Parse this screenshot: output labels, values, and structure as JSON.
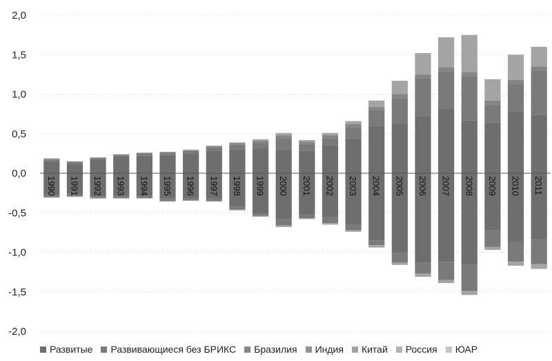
{
  "chart_data": {
    "type": "bar",
    "stacked": true,
    "categories": [
      "1990",
      "1991",
      "1992",
      "1993",
      "1994",
      "1995",
      "1996",
      "1997",
      "1998",
      "1999",
      "2000",
      "2001",
      "2002",
      "2003",
      "2004",
      "2005",
      "2006",
      "2007",
      "2008",
      "2009",
      "2010",
      "2011"
    ],
    "ylim": [
      -2.0,
      2.0
    ],
    "yticks": [
      "2,0",
      "1,5",
      "1,0",
      "0,5",
      "0,0",
      "-0,5",
      "-1,0",
      "-1,5",
      "-2,0"
    ],
    "ytick_values": [
      2.0,
      1.5,
      1.0,
      0.5,
      0.0,
      -0.5,
      -1.0,
      -1.5,
      -2.0
    ],
    "grid": "horizontal-dotted",
    "legend_position": "bottom",
    "series": [
      {
        "name": "Развитые",
        "color": "#6e6e6e",
        "values": [
          0.15,
          0.12,
          0.17,
          0.21,
          0.22,
          0.23,
          0.25,
          0.28,
          0.3,
          0.31,
          0.3,
          0.28,
          0.35,
          0.44,
          0.6,
          0.62,
          0.72,
          0.82,
          0.67,
          0.64,
          0.78,
          0.74
        ]
      },
      {
        "name": "Развивающиеся без БРИКС",
        "color": "#7a7a7a",
        "values": [
          0.02,
          0.02,
          0.02,
          0.02,
          0.03,
          0.03,
          0.03,
          0.05,
          0.06,
          0.07,
          0.14,
          0.09,
          0.09,
          0.14,
          0.2,
          0.33,
          0.48,
          0.47,
          0.56,
          0.23,
          0.35,
          0.56
        ]
      },
      {
        "name": "Бразилия",
        "color": "#858585",
        "values": [
          0.01,
          0.01,
          0.01,
          0.01,
          0.01,
          0.01,
          0.01,
          0.01,
          0.02,
          0.03,
          0.04,
          0.03,
          0.04,
          0.04,
          0.04,
          0.05,
          0.05,
          0.05,
          0.05,
          0.05,
          0.05,
          0.05
        ]
      },
      {
        "name": "Индия",
        "color": "#939393",
        "values": [
          0,
          0,
          0,
          0,
          0,
          0,
          0,
          0,
          0,
          0,
          0,
          0,
          0,
          0,
          0,
          0,
          0,
          0,
          0,
          0,
          0,
          0
        ]
      },
      {
        "name": "Китай",
        "color": "#a4a4a4",
        "values": [
          0.01,
          0.0,
          0.0,
          0.0,
          0.0,
          0.0,
          0.01,
          0.01,
          0.01,
          0.02,
          0.03,
          0.02,
          0.03,
          0.04,
          0.08,
          0.17,
          0.27,
          0.38,
          0.47,
          0.27,
          0.32,
          0.25
        ]
      },
      {
        "name": "Россия",
        "color": "#b3b3b3",
        "values": [
          0,
          0,
          0,
          0,
          0,
          0,
          0,
          0,
          0,
          0,
          0,
          0,
          0,
          0,
          0,
          0,
          0,
          0,
          0,
          0,
          0,
          0
        ]
      },
      {
        "name": "ЮАР",
        "color": "#c4c4c4",
        "values": [
          0,
          0,
          0,
          0,
          0,
          0,
          0,
          0,
          0,
          0,
          0,
          0,
          0,
          0,
          0,
          0,
          0,
          0,
          0,
          0,
          0,
          0
        ]
      }
    ],
    "negative_series": [
      {
        "name": "Развитые",
        "color": "#6e6e6e",
        "values": [
          -0.27,
          -0.26,
          -0.29,
          -0.28,
          -0.28,
          -0.32,
          -0.31,
          -0.31,
          -0.42,
          -0.51,
          -0.58,
          -0.52,
          -0.55,
          -0.65,
          -0.85,
          -1.01,
          -1.13,
          -1.12,
          -1.16,
          -0.72,
          -0.86,
          -0.84
        ]
      },
      {
        "name": "Развивающиеся без БРИКС",
        "color": "#7a7a7a",
        "values": [
          -0.03,
          -0.03,
          -0.02,
          -0.03,
          -0.03,
          -0.03,
          -0.03,
          -0.04,
          -0.04,
          -0.03,
          -0.08,
          -0.05,
          -0.08,
          -0.07,
          -0.06,
          -0.12,
          -0.14,
          -0.23,
          -0.33,
          -0.21,
          -0.26,
          -0.31
        ]
      },
      {
        "name": "Китай",
        "color": "#a4a4a4",
        "values": [
          -0.01,
          -0.01,
          -0.01,
          -0.01,
          -0.01,
          -0.01,
          -0.01,
          -0.01,
          -0.01,
          -0.01,
          -0.02,
          -0.01,
          -0.02,
          -0.02,
          -0.03,
          -0.03,
          -0.04,
          -0.04,
          -0.05,
          -0.04,
          -0.05,
          -0.06
        ]
      },
      {
        "name": "Россия",
        "color": "#b3b3b3",
        "values": [
          0,
          0,
          0,
          0,
          0,
          0,
          0,
          0,
          0,
          0,
          0,
          0,
          0,
          0,
          0,
          0,
          0,
          0,
          0,
          0,
          0,
          0
        ]
      }
    ]
  },
  "legend": [
    {
      "label": "Развитые",
      "color": "#6e6e6e"
    },
    {
      "label": "Развивающиеся без БРИКС",
      "color": "#7a7a7a"
    },
    {
      "label": "Бразилия",
      "color": "#858585"
    },
    {
      "label": "Индия",
      "color": "#939393"
    },
    {
      "label": "Китай",
      "color": "#a4a4a4"
    },
    {
      "label": "Россия",
      "color": "#b3b3b3"
    },
    {
      "label": "ЮАР",
      "color": "#c4c4c4"
    }
  ]
}
